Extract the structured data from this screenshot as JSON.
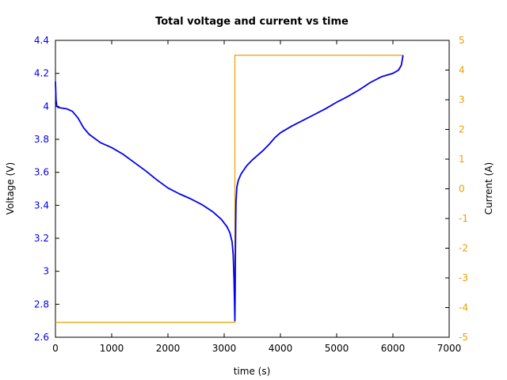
{
  "chart_data": {
    "type": "line",
    "title": "Total voltage and current vs time",
    "xlabel": "time (s)",
    "ylabel_left": "Voltage (V)",
    "ylabel_right": "Current (A)",
    "xlim": [
      0,
      7000
    ],
    "ylim_left": [
      2.6,
      4.4
    ],
    "ylim_right": [
      -5,
      5
    ],
    "x_ticks": [
      0,
      1000,
      2000,
      3000,
      4000,
      5000,
      6000,
      7000
    ],
    "x_tick_labels": [
      "0",
      "1000",
      "2000",
      "3000",
      "4000",
      "5000",
      "6000",
      "7000"
    ],
    "y_left_ticks": [
      2.6,
      2.8,
      3.0,
      3.2,
      3.4,
      3.6,
      3.8,
      4.0,
      4.2,
      4.4
    ],
    "y_left_tick_labels": [
      "2.6",
      "2.8",
      "3",
      "3.2",
      "3.4",
      "3.6",
      "3.8",
      "4",
      "4.2",
      "4.4"
    ],
    "y_right_ticks": [
      -5,
      -4,
      -3,
      -2,
      -1,
      0,
      1,
      2,
      3,
      4,
      5
    ],
    "y_right_tick_labels": [
      "-5",
      "-4",
      "-3",
      "-2",
      "-1",
      "0",
      "1",
      "2",
      "3",
      "4",
      "5"
    ],
    "grid": false,
    "colors": {
      "voltage": "#0000ee",
      "current": "#e8a000",
      "left_axis_text": "#0000ee",
      "right_axis_text": "#e8a000"
    },
    "series": [
      {
        "axis": "left",
        "x": [
          0,
          10,
          25,
          50,
          100,
          200,
          300,
          400,
          500,
          600,
          800,
          1000,
          1200,
          1400,
          1600,
          1800,
          2000,
          2200,
          2400,
          2600,
          2800,
          2950,
          3050,
          3100,
          3140,
          3160,
          3175,
          3185,
          3190,
          3195,
          3200,
          3205,
          3210,
          3225,
          3250,
          3300,
          3400,
          3500,
          3600,
          3700,
          3800,
          3900,
          4000,
          4200,
          4400,
          4600,
          4800,
          5000,
          5200,
          5400,
          5600,
          5800,
          6000,
          6100,
          6150,
          6180
        ],
        "y": [
          4.15,
          4.04,
          4.0,
          3.993,
          3.99,
          3.985,
          3.97,
          3.93,
          3.87,
          3.83,
          3.78,
          3.75,
          3.71,
          3.66,
          3.61,
          3.555,
          3.505,
          3.47,
          3.44,
          3.405,
          3.36,
          3.315,
          3.27,
          3.235,
          3.18,
          3.1,
          2.95,
          2.79,
          2.7,
          2.88,
          3.13,
          3.3,
          3.42,
          3.51,
          3.55,
          3.59,
          3.64,
          3.675,
          3.705,
          3.735,
          3.77,
          3.81,
          3.84,
          3.88,
          3.915,
          3.95,
          3.985,
          4.025,
          4.06,
          4.1,
          4.145,
          4.18,
          4.2,
          4.22,
          4.25,
          4.31
        ]
      },
      {
        "axis": "right",
        "x": [
          0,
          3190,
          3190,
          6180
        ],
        "y": [
          -4.5,
          -4.5,
          4.5,
          4.5
        ]
      }
    ]
  }
}
